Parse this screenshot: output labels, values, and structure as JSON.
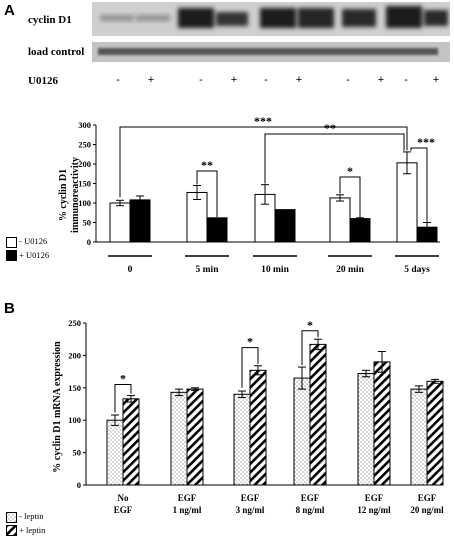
{
  "panel_a": {
    "letter": "A",
    "blot_label_cyclin": "cyclin D1",
    "blot_label_load": "load control",
    "treatment_label": "U0126",
    "treatment_signs": [
      "-",
      "+",
      "-",
      "+",
      "-",
      "+",
      "-",
      "+",
      "-",
      "+"
    ]
  },
  "panel_b": {
    "letter": "B"
  },
  "colors": {
    "open_bar": "#ffffff",
    "solid_bar": "#000000",
    "blot_bg": "#c9c9c9",
    "band": "#1a1a1a"
  },
  "chart_data": [
    {
      "type": "bar",
      "ylabel_line1": "% cyclin D1",
      "ylabel_line2": "immunoreactivity",
      "ylim": [
        0,
        300
      ],
      "yticks": [
        0,
        50,
        100,
        150,
        200,
        250,
        300
      ],
      "categories": [
        "0",
        "5 min",
        "10 min",
        "20 min",
        "5 days"
      ],
      "series": [
        {
          "name": "- U0126",
          "style": "open",
          "values": [
            100,
            127,
            122,
            113,
            203
          ],
          "errors": [
            7,
            18,
            25,
            8,
            28
          ]
        },
        {
          "name": "+ U0126",
          "style": "solid",
          "values": [
            108,
            62,
            83,
            60,
            38
          ],
          "errors": [
            10,
            0,
            0,
            2,
            12
          ]
        }
      ],
      "annotations": [
        "***",
        "**",
        "**",
        "*",
        "***"
      ],
      "legend": [
        "- U0126",
        "+ U0126"
      ]
    },
    {
      "type": "bar",
      "ylabel": "% cyclin D1 mRNA expression",
      "ylim": [
        0,
        250
      ],
      "yticks": [
        0,
        50,
        100,
        150,
        200,
        250
      ],
      "categories": [
        "No EGF",
        "EGF 1 ng/ml",
        "EGF 3 ng/ml",
        "EGF 8 ng/ml",
        "EGF 12 ng/ml",
        "EGF 20 ng/ml"
      ],
      "category_line1": [
        "No",
        "EGF",
        "EGF",
        "EGF",
        "EGF",
        "EGF"
      ],
      "category_line2": [
        "EGF",
        "1 ng/ml",
        "3 ng/ml",
        "8 ng/ml",
        "12 ng/ml",
        "20 ng/ml"
      ],
      "series": [
        {
          "name": "- leptin",
          "style": "dotted",
          "values": [
            100,
            143,
            140,
            165,
            172,
            148
          ],
          "errors": [
            8,
            5,
            5,
            17,
            5,
            5
          ]
        },
        {
          "name": "+ leptin",
          "style": "hatched",
          "values": [
            133,
            148,
            177,
            217,
            190,
            160
          ],
          "errors": [
            5,
            2,
            7,
            8,
            16,
            3
          ]
        }
      ],
      "annotations": [
        "*",
        "*",
        "*"
      ],
      "legend": [
        "- leptin",
        "+ leptin"
      ]
    }
  ]
}
